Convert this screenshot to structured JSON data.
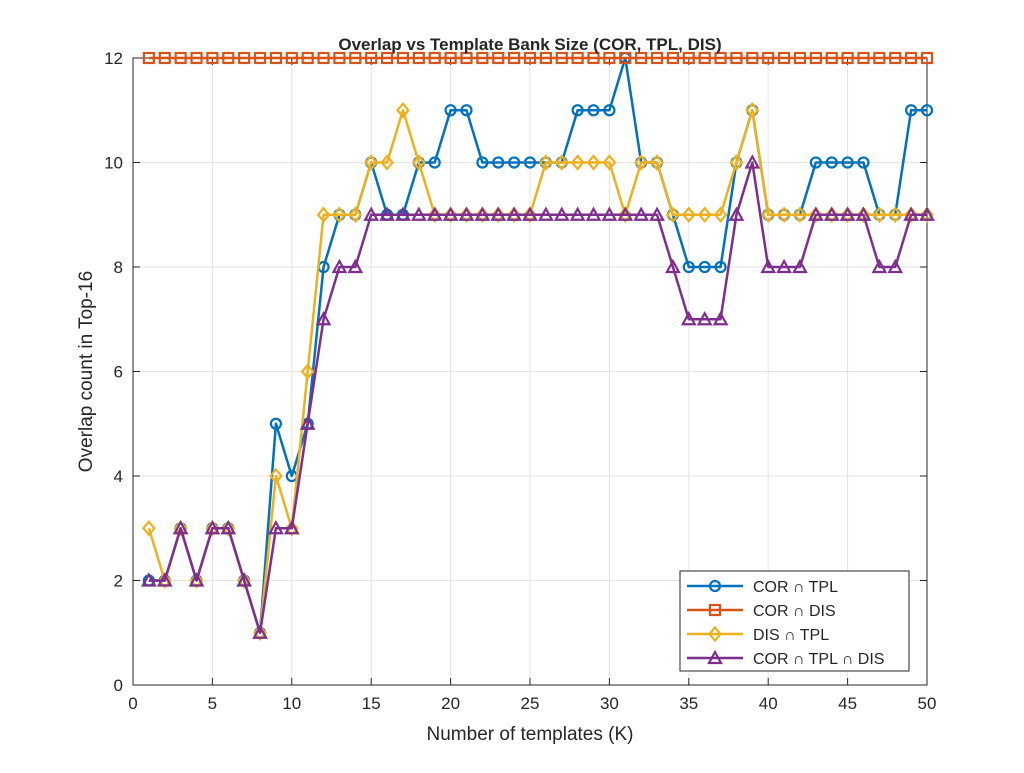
{
  "chart_data": {
    "type": "line",
    "title": "Overlap vs Template Bank Size (COR, TPL, DIS)",
    "xlabel": "Number of templates (K)",
    "ylabel": "Overlap count in Top-16",
    "xlim": [
      0,
      50
    ],
    "ylim": [
      0,
      12
    ],
    "xticks": [
      0,
      5,
      10,
      15,
      20,
      25,
      30,
      35,
      40,
      45,
      50
    ],
    "yticks": [
      0,
      2,
      4,
      6,
      8,
      10,
      12
    ],
    "grid": true,
    "legend_position": "bottom-right",
    "x": [
      1,
      2,
      3,
      4,
      5,
      6,
      7,
      8,
      9,
      10,
      11,
      12,
      13,
      14,
      15,
      16,
      17,
      18,
      19,
      20,
      21,
      22,
      23,
      24,
      25,
      26,
      27,
      28,
      29,
      30,
      31,
      32,
      33,
      34,
      35,
      36,
      37,
      38,
      39,
      40,
      41,
      42,
      43,
      44,
      45,
      46,
      47,
      48,
      49,
      50
    ],
    "series": [
      {
        "name": "COR ∩ TPL",
        "color": "#0072BD",
        "marker": "circle",
        "values": [
          2,
          2,
          3,
          2,
          3,
          3,
          2,
          1,
          5,
          4,
          5,
          8,
          9,
          9,
          10,
          9,
          9,
          10,
          10,
          11,
          11,
          10,
          10,
          10,
          10,
          10,
          10,
          11,
          11,
          11,
          12,
          10,
          10,
          9,
          8,
          8,
          8,
          10,
          11,
          9,
          9,
          9,
          10,
          10,
          10,
          10,
          9,
          9,
          11,
          11
        ]
      },
      {
        "name": "COR ∩ DIS",
        "color": "#D95319",
        "marker": "square",
        "values": [
          12,
          12,
          12,
          12,
          12,
          12,
          12,
          12,
          12,
          12,
          12,
          12,
          12,
          12,
          12,
          12,
          12,
          12,
          12,
          12,
          12,
          12,
          12,
          12,
          12,
          12,
          12,
          12,
          12,
          12,
          12,
          12,
          12,
          12,
          12,
          12,
          12,
          12,
          12,
          12,
          12,
          12,
          12,
          12,
          12,
          12,
          12,
          12,
          12,
          12
        ]
      },
      {
        "name": "DIS ∩ TPL",
        "color": "#EDB120",
        "marker": "diamond",
        "values": [
          3,
          2,
          3,
          2,
          3,
          3,
          2,
          1,
          4,
          3,
          6,
          9,
          9,
          9,
          10,
          10,
          11,
          10,
          9,
          9,
          9,
          9,
          9,
          9,
          9,
          10,
          10,
          10,
          10,
          10,
          9,
          10,
          10,
          9,
          9,
          9,
          9,
          10,
          11,
          9,
          9,
          9,
          9,
          9,
          9,
          9,
          9,
          9,
          9,
          9
        ]
      },
      {
        "name": "COR ∩ TPL ∩ DIS",
        "color": "#7E2F8E",
        "marker": "triangle",
        "values": [
          2,
          2,
          3,
          2,
          3,
          3,
          2,
          1,
          3,
          3,
          5,
          7,
          8,
          8,
          9,
          9,
          9,
          9,
          9,
          9,
          9,
          9,
          9,
          9,
          9,
          9,
          9,
          9,
          9,
          9,
          9,
          9,
          9,
          8,
          7,
          7,
          7,
          9,
          10,
          8,
          8,
          8,
          9,
          9,
          9,
          9,
          8,
          8,
          9,
          9
        ]
      }
    ]
  }
}
